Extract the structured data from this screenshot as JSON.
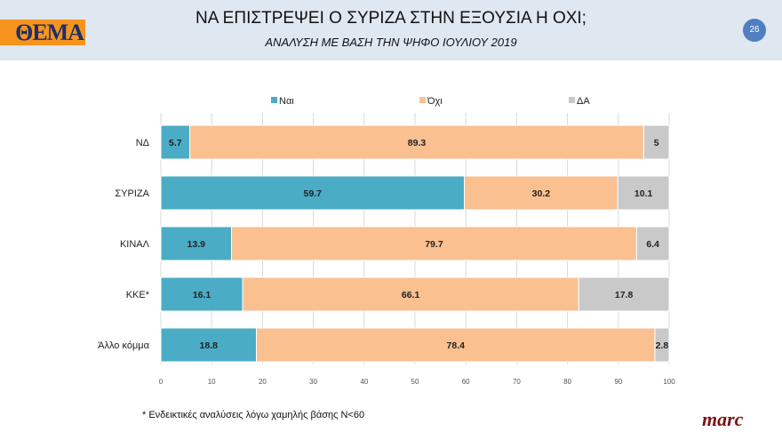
{
  "header": {
    "logo_text": "ΘΕΜΑ",
    "title": "ΝΑ ΕΠΙΣΤΡΕΨΕΙ Ο ΣΥΡΙΖΑ ΣΤΗΝ ΕΞΟΥΣΙΑ Η ΟΧΙ;",
    "subtitle": "ΑΝΑΛΥΣΗ ΜΕ ΒΑΣΗ ΤΗΝ ΨΗΦΟ ΙΟΥΛΙΟΥ 2019",
    "page_number": "26"
  },
  "footer": {
    "note": "* Ενδεικτικές αναλύσεις λόγω χαμηλής βάσης N<60",
    "brand": "marc"
  },
  "chart_data": {
    "type": "bar",
    "orientation": "horizontal",
    "stacked": true,
    "categories": [
      "ΝΔ",
      "ΣΥΡΙΖΑ",
      "ΚΙΝΑΛ",
      "ΚΚΕ*",
      "Άλλο κόμμα"
    ],
    "series": [
      {
        "name": "Ναι",
        "color": "#4bacc6",
        "values": [
          5.7,
          59.7,
          13.9,
          16.1,
          18.8
        ]
      },
      {
        "name": "Όχι",
        "color": "#fac090",
        "values": [
          89.3,
          30.2,
          79.7,
          66.1,
          78.4
        ]
      },
      {
        "name": "ΔΑ",
        "color": "#c9c9c9",
        "values": [
          5,
          10.1,
          6.4,
          17.8,
          2.8
        ]
      }
    ],
    "xlim": [
      0,
      100
    ],
    "xticks": [
      0,
      10,
      20,
      30,
      40,
      50,
      60,
      70,
      80,
      90,
      100
    ],
    "grid": true,
    "legend": "top"
  }
}
